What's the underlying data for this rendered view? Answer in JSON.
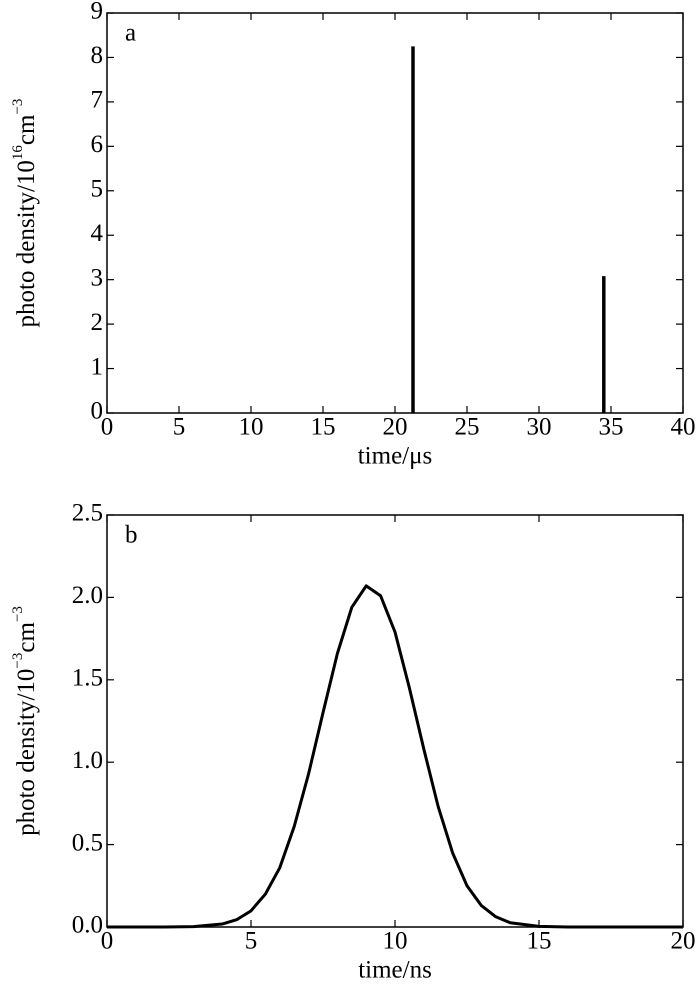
{
  "chart_data": [
    {
      "type": "stem",
      "panel_label": "a",
      "xlabel": "time/μs",
      "ylabel": [
        "photo density/10",
        "16",
        "cm",
        "−3"
      ],
      "x": [
        21.25,
        34.5
      ],
      "values": [
        8.25,
        3.08
      ],
      "color": "#000000",
      "xlim": [
        0,
        40
      ],
      "ylim": [
        0,
        9
      ],
      "xticks": [
        0,
        5,
        10,
        15,
        20,
        25,
        30,
        35,
        40
      ],
      "yticks": [
        0,
        1,
        2,
        3,
        4,
        5,
        6,
        7,
        8,
        9
      ]
    },
    {
      "type": "line",
      "panel_label": "b",
      "xlabel": "time/ns",
      "ylabel": [
        "photo density/10",
        "−3",
        "cm",
        "−3"
      ],
      "x": [
        0,
        2,
        3,
        4,
        4.5,
        5,
        5.5,
        6,
        6.5,
        7,
        7.5,
        8,
        8.5,
        9,
        9.5,
        10,
        10.5,
        11,
        11.5,
        12,
        12.5,
        13,
        13.5,
        14,
        15,
        16,
        20
      ],
      "values": [
        0,
        0.0002,
        0.0024,
        0.018,
        0.044,
        0.098,
        0.2,
        0.36,
        0.61,
        0.93,
        1.3,
        1.66,
        1.94,
        2.07,
        2.01,
        1.79,
        1.45,
        1.08,
        0.73,
        0.45,
        0.25,
        0.13,
        0.062,
        0.026,
        0.004,
        0,
        0
      ],
      "color": "#000000",
      "xlim": [
        0,
        20
      ],
      "ylim": [
        0,
        2.5
      ],
      "xticks": [
        0,
        5,
        10,
        15,
        20
      ],
      "yticks": [
        {
          "value": 0,
          "label": "0.0"
        },
        0.5,
        {
          "value": 1,
          "label": "1.0"
        },
        1.5,
        {
          "value": 2,
          "label": "2.0"
        },
        2.5
      ]
    }
  ]
}
